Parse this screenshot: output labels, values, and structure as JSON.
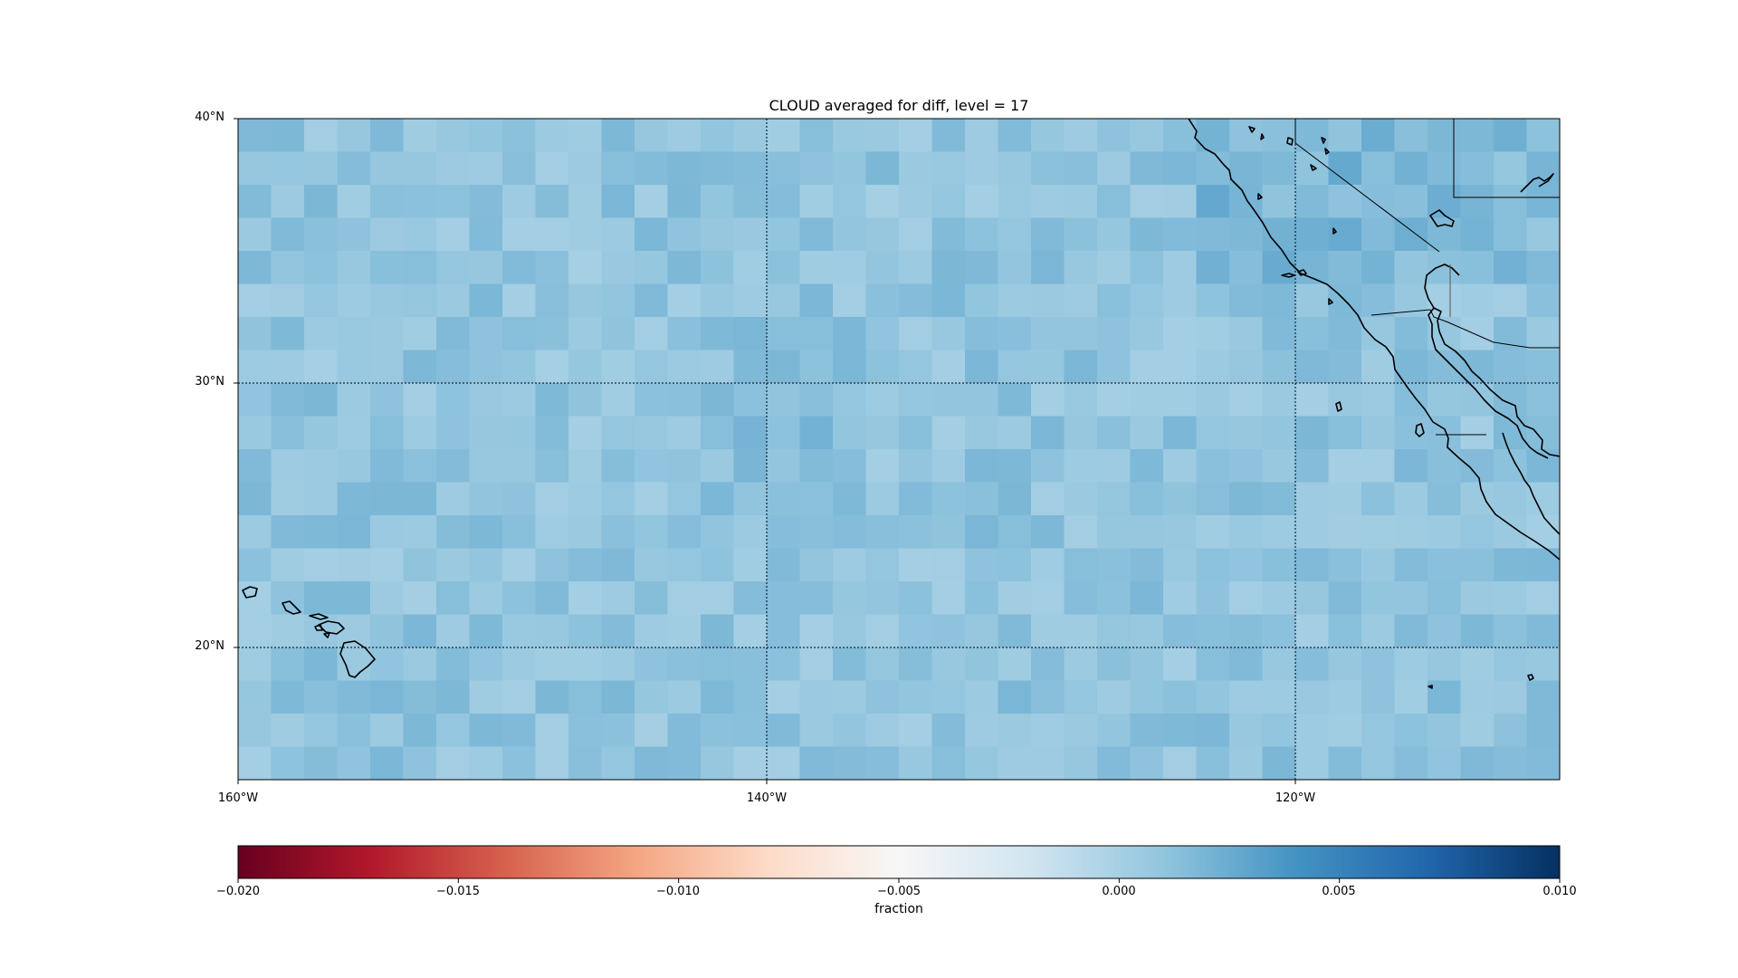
{
  "chart_data": {
    "type": "heatmap",
    "title": "CLOUD averaged for diff, level = 17",
    "map": {
      "projection": "PlateCarree",
      "lon_range": [
        -160,
        -110
      ],
      "lat_range": [
        15,
        40
      ],
      "lon_ticks": [
        -160,
        -140,
        -120
      ],
      "lon_tick_labels": [
        "160°W",
        "140°W",
        "120°W"
      ],
      "lat_ticks": [
        20,
        30,
        40
      ],
      "lat_tick_labels": [
        "20°N",
        "30°N",
        "40°N"
      ],
      "gridlines": "dotted",
      "features": [
        "coastlines",
        "state/country borders",
        "Hawaiian Islands",
        "Baja California",
        "California coast"
      ]
    },
    "field": {
      "variable": "CLOUD",
      "grid_cell_size_deg": 1.25,
      "typical_value": 0.001,
      "value_range_shown": [
        0.0,
        0.004
      ],
      "notes": "difference field mostly near 0.000–0.003; slightly larger values near 30N 140W and off southern California"
    },
    "colorbar": {
      "cmap": "RdBu",
      "vmin": -0.02,
      "vmax": 0.01,
      "ticks": [
        -0.02,
        -0.015,
        -0.01,
        -0.005,
        0.0,
        0.005,
        0.01
      ],
      "tick_labels": [
        "−0.020",
        "−0.015",
        "−0.010",
        "−0.005",
        "0.000",
        "0.005",
        "0.010"
      ],
      "label": "fraction",
      "orientation": "horizontal"
    }
  }
}
